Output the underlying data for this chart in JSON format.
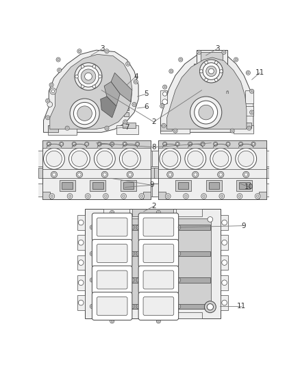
{
  "bg_color": "#ffffff",
  "dc": "#444444",
  "fill_l": "#eeeeee",
  "fill_m": "#d0d0d0",
  "fill_d": "#aaaaaa",
  "fill_dark2": "#888888",
  "leader_color": "#777777",
  "callout_color": "#333333",
  "callout_fontsize": 7.5
}
